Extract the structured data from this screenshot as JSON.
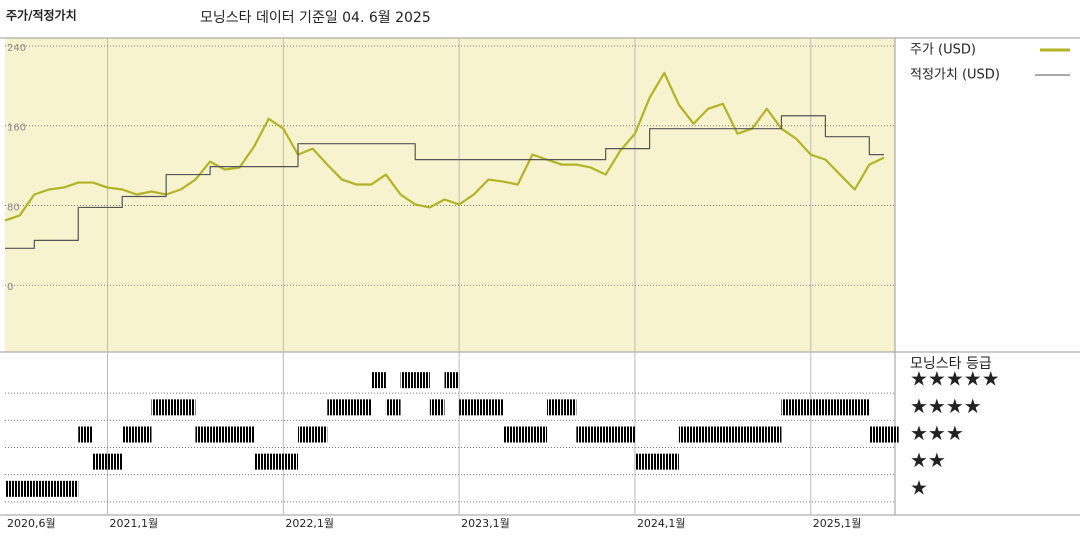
{
  "chart_data": [
    {
      "type": "line",
      "title": "주가/적정가치",
      "subtitle": "모닝스타 데이터 기준일 04. 6월 2025",
      "x": [
        "2020-06",
        "2020-07",
        "2020-08",
        "2020-09",
        "2020-10",
        "2020-11",
        "2020-12",
        "2021-01",
        "2021-02",
        "2021-03",
        "2021-04",
        "2021-05",
        "2021-06",
        "2021-07",
        "2021-08",
        "2021-09",
        "2021-10",
        "2021-11",
        "2021-12",
        "2022-01",
        "2022-02",
        "2022-03",
        "2022-04",
        "2022-05",
        "2022-06",
        "2022-07",
        "2022-08",
        "2022-09",
        "2022-10",
        "2022-11",
        "2022-12",
        "2023-01",
        "2023-02",
        "2023-03",
        "2023-04",
        "2023-05",
        "2023-06",
        "2023-07",
        "2023-08",
        "2023-09",
        "2023-10",
        "2023-11",
        "2023-12",
        "2024-01",
        "2024-02",
        "2024-03",
        "2024-04",
        "2024-05",
        "2024-06",
        "2024-07",
        "2024-08",
        "2024-09",
        "2024-10",
        "2024-11",
        "2024-12",
        "2025-01",
        "2025-02",
        "2025-03",
        "2025-04",
        "2025-05",
        "2025-06"
      ],
      "series": [
        {
          "name": "주가 (USD)",
          "color": "#b3b326",
          "values": [
            65,
            70,
            91,
            96,
            98,
            103,
            103,
            98,
            96,
            91,
            94,
            91,
            96,
            106,
            124,
            116,
            118,
            139,
            167,
            157,
            131,
            137,
            121,
            106,
            101,
            101,
            111,
            91,
            81,
            78,
            86,
            81,
            91,
            106,
            104,
            101,
            131,
            126,
            121,
            121,
            118,
            111,
            135,
            152,
            188,
            213,
            181,
            162,
            177,
            182,
            152,
            157,
            177,
            157,
            147,
            131,
            126,
            111,
            96,
            121,
            128
          ]
        },
        {
          "name": "적정가치 (USD)",
          "color": "#555555",
          "step": true,
          "x": [
            "2020-06",
            "2020-08",
            "2020-11",
            "2021-02",
            "2021-05",
            "2021-08",
            "2022-02",
            "2022-10",
            "2023-11",
            "2024-02",
            "2024-11",
            "2025-02",
            "2025-05",
            "2025-06"
          ],
          "values": [
            37,
            45,
            78,
            89,
            111,
            119,
            142,
            126,
            137,
            157,
            170,
            149,
            131,
            131
          ]
        }
      ],
      "ylim": [
        -67,
        248
      ],
      "yticks": [
        0,
        80,
        160,
        240
      ],
      "grid": true,
      "background": "#f7f3cf"
    },
    {
      "type": "rating",
      "title": "모닝스타 등급",
      "x": [
        "2020-06",
        "2020-07",
        "2020-08",
        "2020-09",
        "2020-10",
        "2020-11",
        "2020-12",
        "2021-01",
        "2021-02",
        "2021-03",
        "2021-04",
        "2021-05",
        "2021-06",
        "2021-07",
        "2021-08",
        "2021-09",
        "2021-10",
        "2021-11",
        "2021-12",
        "2022-01",
        "2022-02",
        "2022-03",
        "2022-04",
        "2022-05",
        "2022-06",
        "2022-07",
        "2022-08",
        "2022-09",
        "2022-10",
        "2022-11",
        "2022-12",
        "2023-01",
        "2023-02",
        "2023-03",
        "2023-04",
        "2023-05",
        "2023-06",
        "2023-07",
        "2023-08",
        "2023-09",
        "2023-10",
        "2023-11",
        "2023-12",
        "2024-01",
        "2024-02",
        "2024-03",
        "2024-04",
        "2024-05",
        "2024-06",
        "2024-07",
        "2024-08",
        "2024-09",
        "2024-10",
        "2024-11",
        "2024-12",
        "2025-01",
        "2025-02",
        "2025-03",
        "2025-04",
        "2025-05",
        "2025-06"
      ],
      "values": [
        1,
        1,
        1,
        1,
        1,
        3,
        2,
        2,
        3,
        3,
        4,
        4,
        4,
        3,
        3,
        3,
        3,
        2,
        2,
        2,
        3,
        3,
        4,
        4,
        4,
        5,
        4,
        5,
        5,
        4,
        5,
        4,
        4,
        4,
        3,
        3,
        3,
        4,
        4,
        3,
        3,
        3,
        3,
        2,
        2,
        2,
        3,
        3,
        3,
        3,
        3,
        3,
        3,
        4,
        4,
        4,
        4,
        4,
        4,
        3,
        3
      ],
      "color": "#333333",
      "highlight_color": "#3f8f72",
      "ylim": [
        0,
        6
      ],
      "yticks": [
        {
          "value": 5,
          "label": "★★★★★"
        },
        {
          "value": 4,
          "label": "★★★★"
        },
        {
          "value": 3,
          "label": "★★★"
        },
        {
          "value": 2,
          "label": "★★"
        },
        {
          "value": 1,
          "label": "★"
        }
      ],
      "xticks": [
        {
          "value": "2020-06",
          "label": "2020,6월"
        },
        {
          "value": "2021-01",
          "label": "2021,1월"
        },
        {
          "value": "2022-01",
          "label": "2022,1월"
        },
        {
          "value": "2023-01",
          "label": "2023,1월"
        },
        {
          "value": "2024-01",
          "label": "2024,1월"
        },
        {
          "value": "2025-01",
          "label": "2025,1월"
        }
      ]
    }
  ]
}
